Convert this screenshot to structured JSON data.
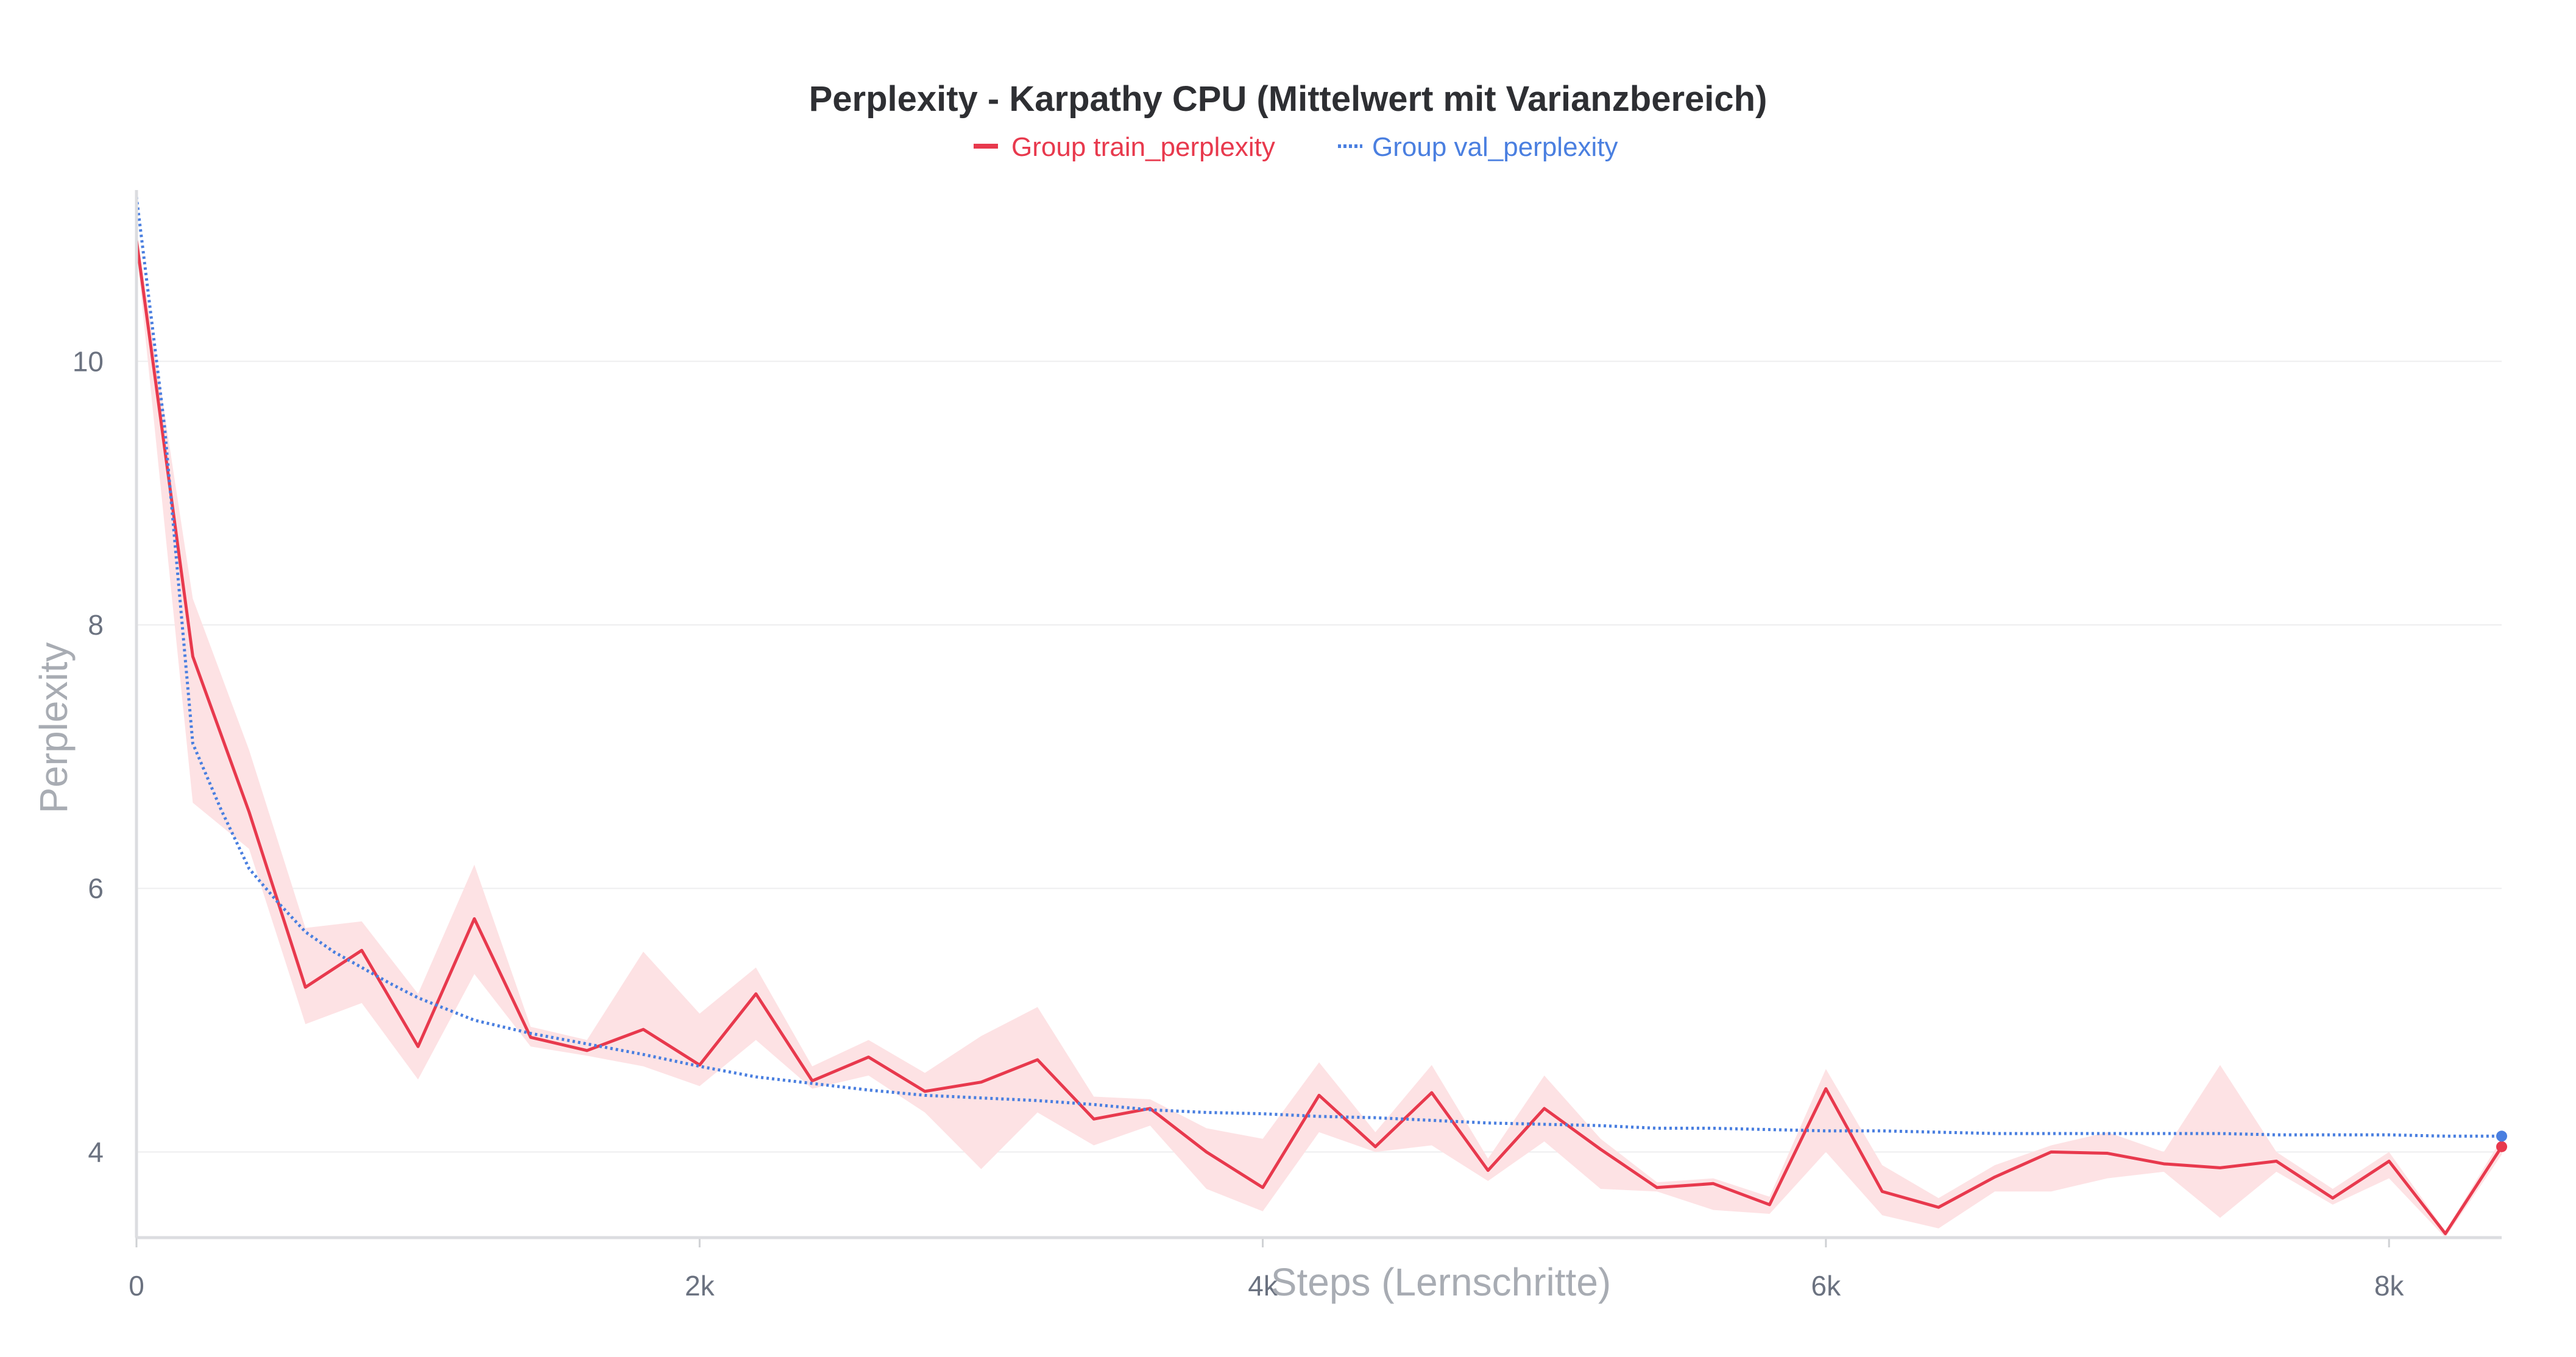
{
  "chart_data": {
    "type": "line",
    "title": "Perplexity - Karpathy CPU (Mittelwert mit Varianzbereich)",
    "xlabel": "Steps (Lernschritte)",
    "ylabel": "Perplexity",
    "xlim": [
      0,
      8400
    ],
    "ylim": [
      3.35,
      11.3
    ],
    "x_ticks": [
      0,
      2000,
      4000,
      6000,
      8000
    ],
    "x_tick_labels": [
      "0",
      "2k",
      "4k",
      "6k",
      "8k"
    ],
    "y_ticks": [
      4,
      6,
      8,
      10
    ],
    "y_tick_labels": [
      "4",
      "6",
      "8",
      "10"
    ],
    "grid": "horizontal",
    "legend_position": "top-center",
    "series": [
      {
        "name": "Group train_perplexity",
        "color": "#e8394d",
        "style": "solid",
        "band_color": "#fde2e4",
        "x": [
          0,
          200,
          400,
          600,
          800,
          1000,
          1200,
          1400,
          1600,
          1800,
          2000,
          2200,
          2400,
          2600,
          2800,
          3000,
          3200,
          3400,
          3600,
          3800,
          4000,
          4200,
          4400,
          4600,
          4800,
          5000,
          5200,
          5400,
          5600,
          5800,
          6000,
          6200,
          6400,
          6600,
          6800,
          7000,
          7200,
          7400,
          7600,
          7800,
          8000,
          8200,
          8400
        ],
        "y": [
          10.92,
          7.76,
          6.58,
          5.25,
          5.53,
          4.8,
          5.77,
          4.87,
          4.77,
          4.93,
          4.66,
          5.2,
          4.54,
          4.72,
          4.46,
          4.53,
          4.7,
          4.25,
          4.33,
          4.0,
          3.73,
          4.43,
          4.04,
          4.45,
          3.86,
          4.33,
          4.02,
          3.73,
          3.76,
          3.6,
          4.48,
          3.7,
          3.58,
          3.81,
          4.0,
          3.99,
          3.91,
          3.88,
          3.93,
          3.65,
          3.93,
          3.38,
          4.04
        ],
        "lower": [
          10.85,
          6.65,
          6.3,
          4.97,
          5.13,
          4.55,
          5.35,
          4.8,
          4.73,
          4.65,
          4.5,
          4.85,
          4.48,
          4.58,
          4.3,
          3.87,
          4.3,
          4.05,
          4.2,
          3.72,
          3.55,
          4.15,
          4.0,
          4.05,
          3.78,
          4.08,
          3.72,
          3.7,
          3.56,
          3.53,
          4.0,
          3.52,
          3.42,
          3.7,
          3.7,
          3.8,
          3.85,
          3.5,
          3.85,
          3.6,
          3.8,
          3.35,
          3.98
        ],
        "upper": [
          11.0,
          8.2,
          7.05,
          5.7,
          5.75,
          5.2,
          6.18,
          4.95,
          4.85,
          5.52,
          5.05,
          5.4,
          4.65,
          4.85,
          4.6,
          4.88,
          5.1,
          4.42,
          4.4,
          4.18,
          4.1,
          4.68,
          4.15,
          4.66,
          3.95,
          4.58,
          4.1,
          3.77,
          3.8,
          3.66,
          4.63,
          3.9,
          3.65,
          3.9,
          4.05,
          4.15,
          4.0,
          4.66,
          4.0,
          3.72,
          4.0,
          3.4,
          4.1
        ]
      },
      {
        "name": "Group val_perplexity",
        "color": "#4a7fe0",
        "style": "dotted",
        "x": [
          0,
          100,
          200,
          300,
          400,
          500,
          600,
          700,
          800,
          900,
          1000,
          1200,
          1400,
          1600,
          1800,
          2000,
          2200,
          2400,
          2600,
          2800,
          3000,
          3200,
          3400,
          3600,
          3800,
          4000,
          4200,
          4400,
          4600,
          4800,
          5000,
          5200,
          5400,
          5600,
          5800,
          6000,
          6200,
          6400,
          6600,
          6800,
          7000,
          7200,
          7400,
          7600,
          7800,
          8000,
          8200,
          8400
        ],
        "y": [
          11.25,
          9.5,
          7.1,
          6.6,
          6.15,
          5.9,
          5.67,
          5.52,
          5.4,
          5.28,
          5.17,
          5.0,
          4.9,
          4.82,
          4.74,
          4.65,
          4.57,
          4.52,
          4.47,
          4.43,
          4.41,
          4.39,
          4.36,
          4.32,
          4.3,
          4.29,
          4.27,
          4.26,
          4.24,
          4.22,
          4.21,
          4.2,
          4.18,
          4.18,
          4.17,
          4.16,
          4.16,
          4.15,
          4.14,
          4.14,
          4.14,
          4.14,
          4.14,
          4.13,
          4.13,
          4.13,
          4.12,
          4.12
        ]
      }
    ]
  }
}
